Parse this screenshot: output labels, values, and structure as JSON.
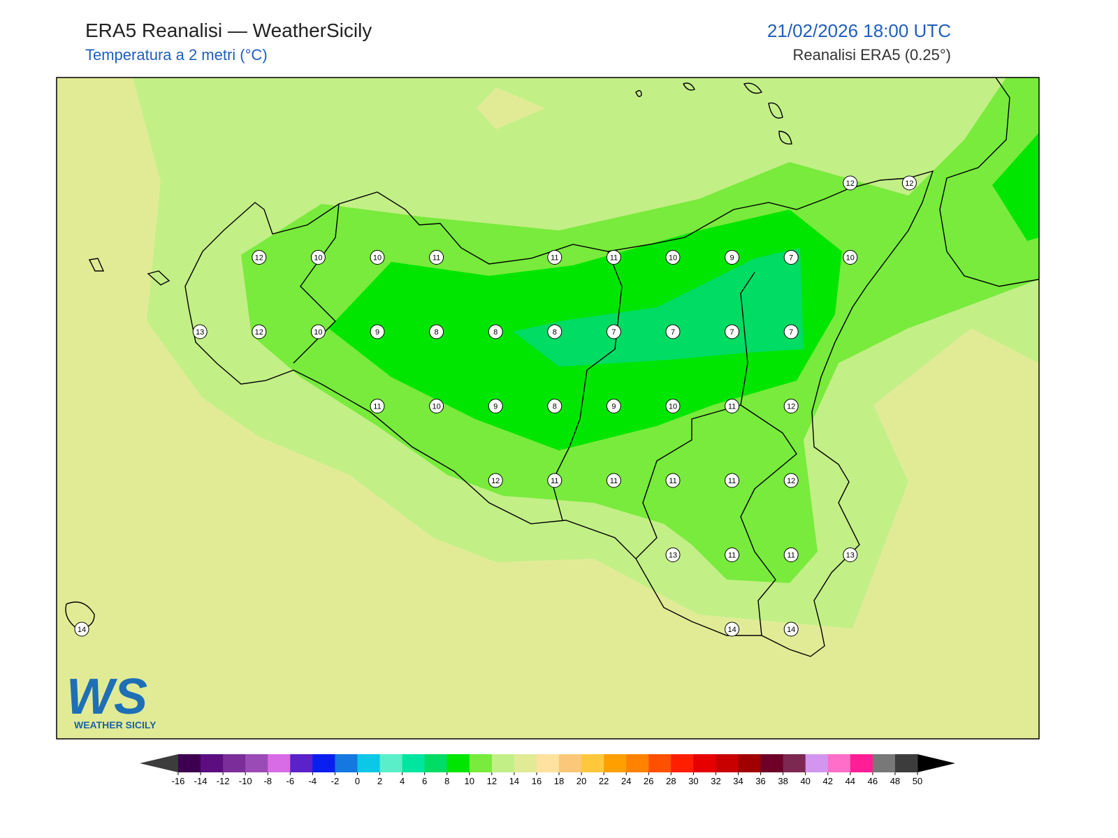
{
  "header": {
    "title": "ERA5 Reanalisi — WeatherSicily",
    "subtitle": "Temperatura a 2 metri (°C)",
    "datetime": "21/02/2026 18:00 UTC",
    "source": "Reanalisi ERA5 (0.25°)"
  },
  "map": {
    "stations": [
      12,
      12,
      12,
      10,
      10,
      11,
      11,
      11,
      10,
      9,
      7,
      10,
      13,
      12,
      10,
      9,
      8,
      8,
      8,
      7,
      7,
      7,
      7,
      11,
      10,
      9,
      8,
      9,
      10,
      11,
      12,
      12,
      11,
      11,
      11,
      11,
      12,
      13,
      11,
      11,
      13,
      14,
      14,
      14
    ]
  },
  "colorbar": {
    "ticks": [
      -16,
      -14,
      -12,
      -10,
      -8,
      -6,
      -4,
      -2,
      0,
      2,
      4,
      6,
      8,
      10,
      12,
      14,
      16,
      18,
      20,
      22,
      24,
      26,
      28,
      30,
      32,
      34,
      36,
      38,
      40,
      42,
      44,
      46,
      48,
      50
    ],
    "colors": [
      "#3d0050",
      "#5c0e80",
      "#7b2d9a",
      "#9b4bb5",
      "#d86be6",
      "#5a22c8",
      "#0a1ef0",
      "#1478e0",
      "#0ac8e6",
      "#5aefc8",
      "#00e6a0",
      "#00dc64",
      "#00e600",
      "#78eb3c",
      "#c3ef87",
      "#e1eb96",
      "#ffe1a0",
      "#fac878",
      "#ffc83c",
      "#ffa000",
      "#ff8200",
      "#ff5000",
      "#ff1e00",
      "#e60000",
      "#c80000",
      "#a00000",
      "#6e0028",
      "#7d2850",
      "#d296f0",
      "#ff6ec8",
      "#ff1e96",
      "#787878",
      "#3c3c3c"
    ],
    "under_color": "#3c3c3c",
    "over_color": "#000000"
  },
  "logo": {
    "mark": "WS",
    "text": "WEATHER SICILY"
  }
}
